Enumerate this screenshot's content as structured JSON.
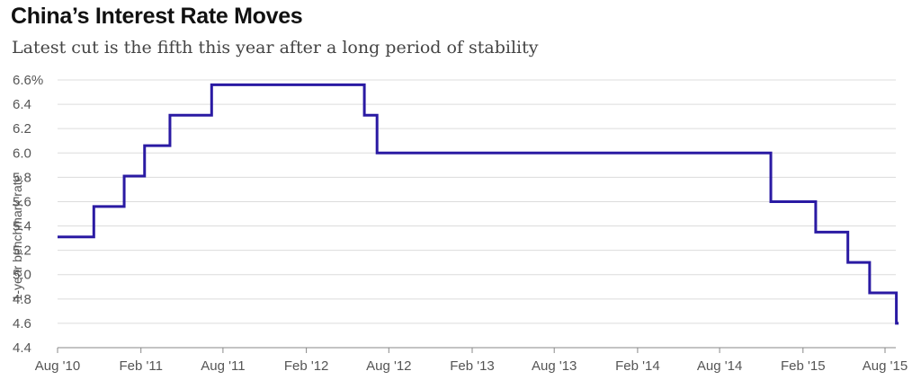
{
  "title": "China’s Interest Rate Moves",
  "subtitle": "Latest cut is the fifth this year after a long period of stability",
  "chart_data": {
    "type": "line",
    "step": true,
    "ylabel": "1-year benchmark rate",
    "xlabel": "",
    "ylim": [
      4.4,
      6.6
    ],
    "y_ticks": [
      "4.4",
      "4.6",
      "4.8",
      "5.0",
      "5.2",
      "5.4",
      "5.6",
      "5.8",
      "6.0",
      "6.2",
      "6.4",
      "6.6%"
    ],
    "y_tick_values": [
      4.4,
      4.6,
      4.8,
      5.0,
      5.2,
      5.4,
      5.6,
      5.8,
      6.0,
      6.2,
      6.4,
      6.6
    ],
    "x_ticks": [
      "Aug '10",
      "Feb '11",
      "Aug '11",
      "Feb '12",
      "Aug '12",
      "Feb '13",
      "Aug '13",
      "Feb '14",
      "Aug '14",
      "Feb '15",
      "Aug '15"
    ],
    "x_tick_values": [
      "2010-08-01",
      "2011-02-01",
      "2011-08-01",
      "2012-02-01",
      "2012-08-01",
      "2013-02-01",
      "2013-08-01",
      "2014-02-01",
      "2014-08-01",
      "2015-02-01",
      "2015-08-01"
    ],
    "grid": true,
    "series_color": "#2a1aa3",
    "series": [
      {
        "x": [
          "2010-08-01",
          "2010-10-20",
          "2010-12-26",
          "2011-02-09",
          "2011-04-06",
          "2011-07-07",
          "2012-06-08",
          "2012-07-06",
          "2014-11-22",
          "2015-03-01",
          "2015-05-11",
          "2015-06-28",
          "2015-08-26",
          "2015-08-31"
        ],
        "y": [
          5.31,
          5.56,
          5.81,
          6.06,
          6.31,
          6.56,
          6.31,
          6.0,
          5.6,
          5.35,
          5.1,
          4.85,
          4.6,
          4.6
        ]
      }
    ]
  }
}
